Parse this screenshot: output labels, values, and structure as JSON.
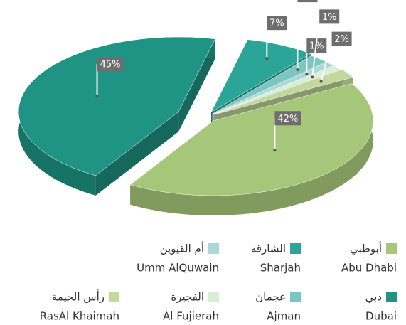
{
  "chart_data": {
    "type": "pie",
    "categories": [
      "Abu Dhabi",
      "Dubai",
      "Sharjah",
      "Ajman",
      "Umm AlQuwain",
      "Al Fujierah",
      "RasAl Khaimah"
    ],
    "categories_ar": [
      "أبوظبي",
      "دبي",
      "الشارقة",
      "عجمان",
      "أم القيوين",
      "الفجيرة",
      "رأس الخيمة"
    ],
    "values": [
      42,
      45,
      7,
      2,
      1,
      1,
      2
    ],
    "value_labels": [
      "42%",
      "45%",
      "7%",
      "2%",
      "1%",
      "1%",
      "2%"
    ],
    "colors": [
      "#a6c77a",
      "#1f9484",
      "#2aa598",
      "#7cc6c1",
      "#a9d9d6",
      "#d9eed7",
      "#c3d89c"
    ]
  }
}
